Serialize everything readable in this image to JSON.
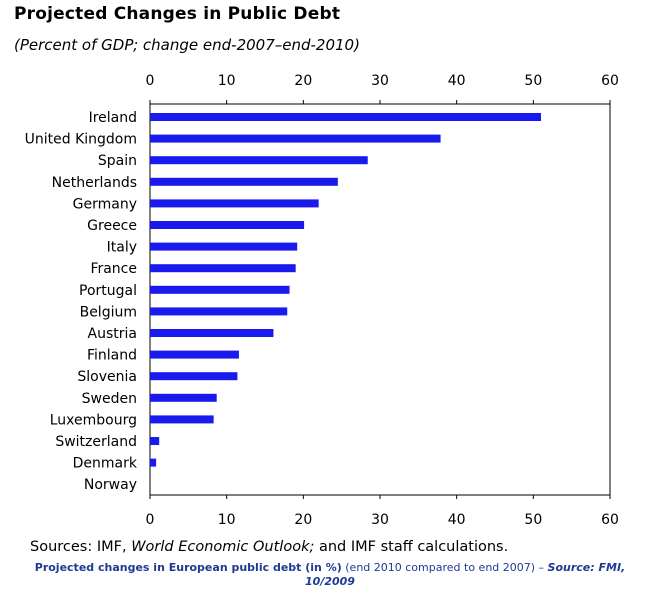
{
  "title": "Projected Changes in Public Debt",
  "subtitle": "(Percent of GDP; change end-2007–end-2010)",
  "source": {
    "prefix": "Sources: IMF, ",
    "italic": "World Economic Outlook;",
    "suffix": " and IMF staff calculations."
  },
  "caption": {
    "bold": "Projected changes in European public debt (in %)",
    "normal": " (end 2010 compared to end 2007) – ",
    "source": "Source: FMI, 10/2009"
  },
  "colors": {
    "bar": "#1a1aee",
    "frame": "#000000"
  },
  "chart_data": {
    "type": "bar",
    "orientation": "horizontal",
    "title": "Projected Changes in Public Debt",
    "subtitle": "(Percent of GDP; change end-2007–end-2010)",
    "xlabel": "",
    "ylabel": "",
    "xlim": [
      0,
      60
    ],
    "xticks": [
      0,
      10,
      20,
      30,
      40,
      50,
      60
    ],
    "tick_labels": [
      "0",
      "10",
      "20",
      "30",
      "40",
      "50",
      "60"
    ],
    "grid": false,
    "categories": [
      "Ireland",
      "United Kingdom",
      "Spain",
      "Netherlands",
      "Germany",
      "Greece",
      "Italy",
      "France",
      "Portugal",
      "Belgium",
      "Austria",
      "Finland",
      "Slovenia",
      "Sweden",
      "Luxembourg",
      "Switzerland",
      "Denmark",
      "Norway"
    ],
    "values": [
      51.0,
      37.9,
      28.4,
      24.5,
      22.0,
      20.1,
      19.2,
      19.0,
      18.2,
      17.9,
      16.1,
      11.6,
      11.4,
      8.7,
      8.3,
      1.2,
      0.8,
      0.0
    ]
  }
}
